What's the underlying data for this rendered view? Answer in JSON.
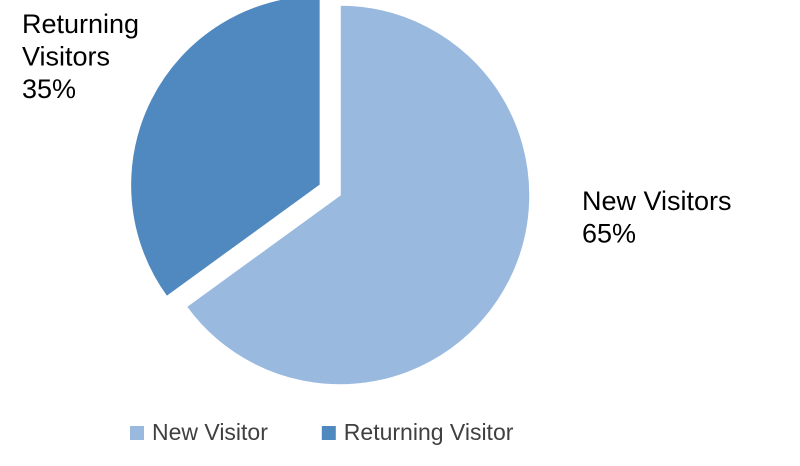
{
  "chart_data": {
    "type": "pie",
    "title": "",
    "legend_position": "bottom",
    "slices": [
      {
        "category": "New Visitor",
        "label_lines": [
          "New Visitors",
          "65%"
        ],
        "value": 65,
        "color": "#9ab9df",
        "exploded": false
      },
      {
        "category": "Returning Visitor",
        "label_lines": [
          "Returning",
          "Visitors",
          "35%"
        ],
        "value": 35,
        "color": "#5088c0",
        "exploded": true
      }
    ],
    "legend": [
      {
        "label": "New Visitor",
        "color": "#9ab9df"
      },
      {
        "label": "Returning Visitor",
        "color": "#5088c0"
      }
    ]
  }
}
